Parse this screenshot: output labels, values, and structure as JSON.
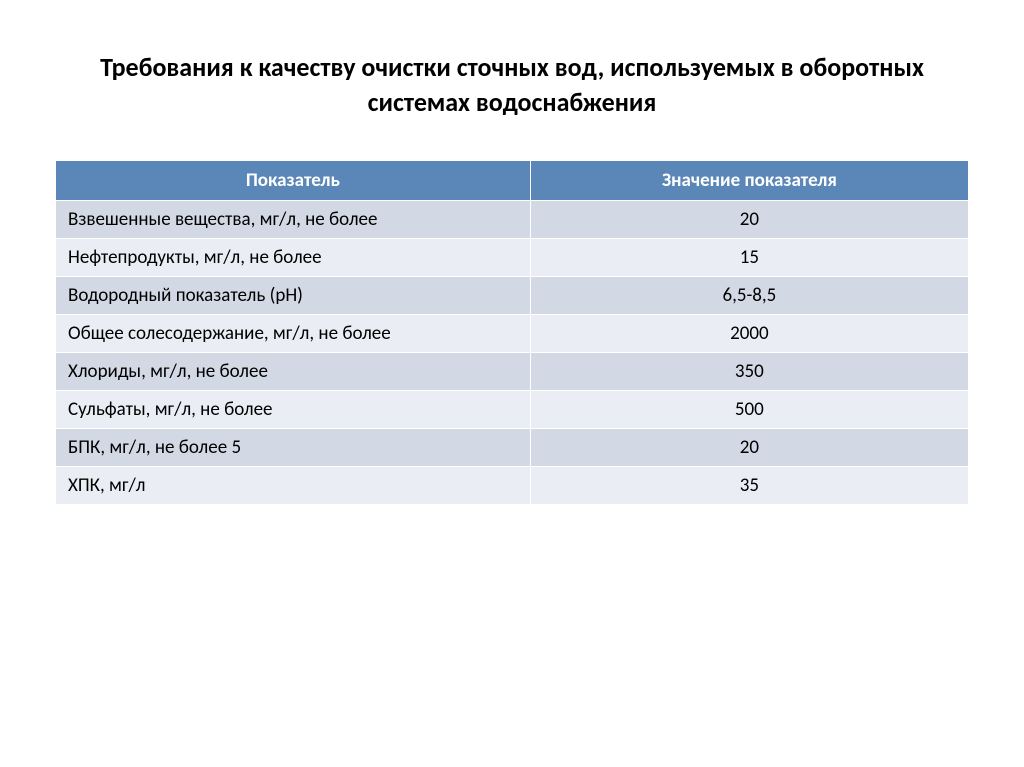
{
  "title": "Требования к качеству очистки сточных вод, используемых в оборотных системах водоснабжения",
  "table": {
    "type": "table",
    "header_bg": "#5b86b8",
    "header_fg": "#ffffff",
    "row_band_a": "#d2d9e5",
    "row_band_b": "#eaedf3",
    "text_color": "#000000",
    "border_color": "#ffffff",
    "font_size": 19,
    "columns": [
      "Показатель",
      "Значение показателя"
    ],
    "rows": [
      [
        "Взвешенные вещества, мг/л, не более",
        "20"
      ],
      [
        "Нефтепродукты, мг/л, не более",
        "15"
      ],
      [
        "Водородный показатель (рН)",
        "6,5-8,5"
      ],
      [
        "Общее солесодержание, мг/л, не более",
        "2000"
      ],
      [
        "Хлориды, мг/л, не более",
        "350"
      ],
      [
        "Сульфаты, мг/л, не более",
        "500"
      ],
      [
        "БПК, мг/л, не более 5",
        "20"
      ],
      [
        "ХПК, мг/л",
        "35"
      ]
    ]
  }
}
